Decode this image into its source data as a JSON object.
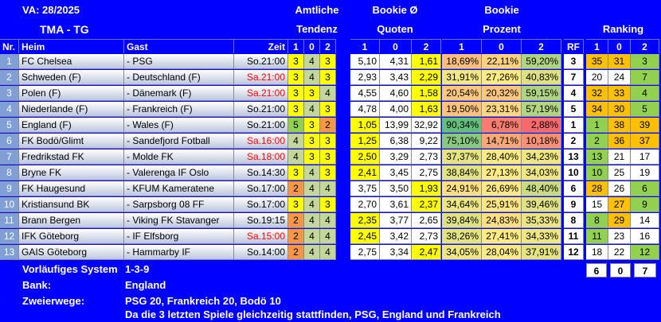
{
  "title": "VA: 28/2025",
  "subtitle": "TMA - TG",
  "headers": {
    "amtliche": "Amtliche",
    "tendenz": "Tendenz",
    "bookie_avg": "Bookie Ø",
    "quoten": "Quoten",
    "bookie": "Bookie",
    "prozent": "Prozent",
    "ranking": "Ranking",
    "nr": "Nr.",
    "heim": "Heim",
    "gast": "Gast",
    "zeit": "Zeit",
    "rf": "RF",
    "one": "1",
    "zero": "0",
    "two": "2"
  },
  "rows": [
    {
      "nr": "1",
      "heim": "FC Chelsea",
      "gast": "- PSG",
      "zeit": "So.21:00",
      "zeit_red": false,
      "t": [
        "3",
        "4",
        "3"
      ],
      "q": [
        "5,10",
        "4,31",
        "1,61"
      ],
      "p": [
        "18,69%",
        "22,11%",
        "59,20%"
      ],
      "rf": "3",
      "r": [
        "35",
        "31",
        "3"
      ]
    },
    {
      "nr": "2",
      "heim": "Schweden (F)",
      "gast": "- Deutschland (F)",
      "zeit": "Sa.21:00",
      "zeit_red": true,
      "t": [
        "3",
        "4",
        "3"
      ],
      "q": [
        "2,93",
        "3,43",
        "2,29"
      ],
      "p": [
        "31,91%",
        "27,26%",
        "40,83%"
      ],
      "rf": "7",
      "r": [
        "20",
        "24",
        "7"
      ]
    },
    {
      "nr": "3",
      "heim": "Polen (F)",
      "gast": "- Dänemark (F)",
      "zeit": "Sa.21:00",
      "zeit_red": true,
      "t": [
        "3",
        "3",
        "4"
      ],
      "q": [
        "4,55",
        "4,60",
        "1,58"
      ],
      "p": [
        "20,54%",
        "20,32%",
        "59,15%"
      ],
      "rf": "4",
      "r": [
        "32",
        "33",
        "4"
      ]
    },
    {
      "nr": "4",
      "heim": "Niederlande (F)",
      "gast": "- Frankreich (F)",
      "zeit": "So.21:00",
      "zeit_red": false,
      "t": [
        "3",
        "4",
        "3"
      ],
      "q": [
        "4,78",
        "4,00",
        "1,63"
      ],
      "p": [
        "19,50%",
        "23,31%",
        "57,19%"
      ],
      "rf": "5",
      "r": [
        "34",
        "30",
        "5"
      ]
    },
    {
      "nr": "5",
      "heim": "England (F)",
      "gast": "- Wales (F)",
      "zeit": "So.21:00",
      "zeit_red": false,
      "t": [
        "5",
        "3",
        "2"
      ],
      "q": [
        "1,05",
        "13,99",
        "32,92"
      ],
      "p": [
        "90,34%",
        "6,78%",
        "2,88%"
      ],
      "rf": "1",
      "r": [
        "1",
        "38",
        "39"
      ]
    },
    {
      "nr": "6",
      "heim": "FK Bodö/Glimt",
      "gast": "- Sandefjord Fotball",
      "zeit": "Sa.16:00",
      "zeit_red": true,
      "t": [
        "4",
        "3",
        "3"
      ],
      "q": [
        "1,25",
        "6,38",
        "9,22"
      ],
      "p": [
        "75,10%",
        "14,71%",
        "10,18%"
      ],
      "rf": "2",
      "r": [
        "2",
        "36",
        "37"
      ]
    },
    {
      "nr": "7",
      "heim": "Fredrikstad FK",
      "gast": "- Molde FK",
      "zeit": "Sa.18:00",
      "zeit_red": true,
      "t": [
        "4",
        "3",
        "3"
      ],
      "q": [
        "2,50",
        "3,29",
        "2,73"
      ],
      "p": [
        "37,37%",
        "28,40%",
        "34,23%"
      ],
      "rf": "13",
      "r": [
        "13",
        "21",
        "17"
      ]
    },
    {
      "nr": "8",
      "heim": "Bryne FK",
      "gast": "- Valerenga IF Oslo",
      "zeit": "So.14:30",
      "zeit_red": false,
      "t": [
        "3",
        "4",
        "3"
      ],
      "q": [
        "2,41",
        "3,45",
        "2,75"
      ],
      "p": [
        "38,84%",
        "27,13%",
        "34,03%"
      ],
      "rf": "10",
      "r": [
        "10",
        "25",
        "19"
      ]
    },
    {
      "nr": "9",
      "heim": "FK Haugesund",
      "gast": "- KFUM Kameratene",
      "zeit": "So.17:00",
      "zeit_red": false,
      "t": [
        "2",
        "4",
        "4"
      ],
      "q": [
        "3,75",
        "3,50",
        "1,93"
      ],
      "p": [
        "24,91%",
        "26,69%",
        "48,40%"
      ],
      "rf": "6",
      "r": [
        "28",
        "26",
        "6"
      ]
    },
    {
      "nr": "10",
      "heim": "Kristiansund BK",
      "gast": "- Sarpsborg 08 FF",
      "zeit": "So.17:00",
      "zeit_red": false,
      "t": [
        "3",
        "4",
        "3"
      ],
      "q": [
        "2,70",
        "3,61",
        "2,37"
      ],
      "p": [
        "34,64%",
        "25,91%",
        "39,46%"
      ],
      "rf": "9",
      "r": [
        "15",
        "27",
        "9"
      ]
    },
    {
      "nr": "11",
      "heim": "Brann Bergen",
      "gast": "- Viking FK Stavanger",
      "zeit": "So.19:15",
      "zeit_red": false,
      "t": [
        "2",
        "4",
        "4"
      ],
      "q": [
        "2,35",
        "3,77",
        "2,65"
      ],
      "p": [
        "39,84%",
        "24,83%",
        "35,33%"
      ],
      "rf": "8",
      "r": [
        "8",
        "29",
        "14"
      ]
    },
    {
      "nr": "12",
      "heim": "IFK Göteborg",
      "gast": "- IF Elfsborg",
      "zeit": "Sa.15:00",
      "zeit_red": true,
      "t": [
        "2",
        "4",
        "4"
      ],
      "q": [
        "2,45",
        "3,42",
        "2,73"
      ],
      "p": [
        "38,26%",
        "27,41%",
        "34,33%"
      ],
      "rf": "11",
      "r": [
        "11",
        "23",
        "16"
      ]
    },
    {
      "nr": "13",
      "heim": "GAIS Göteborg",
      "gast": "- Hammarby IF",
      "zeit": "So.14:00",
      "zeit_red": false,
      "t": [
        "2",
        "4",
        "4"
      ],
      "q": [
        "2,75",
        "3,34",
        "2,47"
      ],
      "p": [
        "34,05%",
        "28,04%",
        "37,91%"
      ],
      "rf": "12",
      "r": [
        "18",
        "22",
        "12"
      ]
    }
  ],
  "footer": {
    "vorl_label": "Vorläufiges System",
    "vorl_value": "1-3-9",
    "bank_label": "Bank:",
    "bank_value": "England",
    "zwei_label": "Zweierwege:",
    "zwei_value": "PSG 20, Frankreich 20, Bodö 10",
    "note": "Da die 3 letzten Spiele gleichzeitig stattfinden, PSG, England und Frankreich",
    "totals": [
      "6",
      "0",
      "7"
    ]
  },
  "colors": {
    "background": "#0000ff",
    "tendenz_yellow": "#ffff00",
    "tendenz_green": "#92d050",
    "tendenz_orange": "#f79646",
    "tendenz_gray": "#c4d79b",
    "quote_highlight": "#ffff00",
    "pct_green": "#63be7b",
    "pct_yellow": "#ffeb84",
    "pct_red": "#f8696b",
    "rank_orange": "#ffc000",
    "rank_green": "#92d050"
  }
}
